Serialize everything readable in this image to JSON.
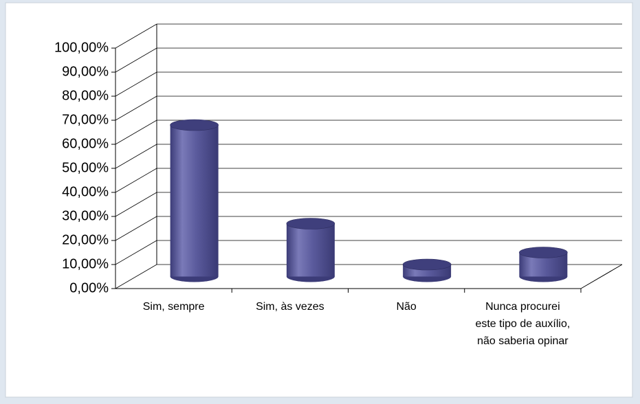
{
  "chart_data": {
    "type": "bar3d",
    "categories": [
      "Sim, sempre",
      "Sim, às vezes",
      "Não",
      "Nunca procurei este tipo de auxílio, não saberia opinar"
    ],
    "values": [
      63,
      22,
      5,
      10
    ],
    "color": "#5a5a9c",
    "ylim": [
      0,
      100
    ],
    "yticks": [
      {
        "value": 0,
        "label": "0,00%"
      },
      {
        "value": 10,
        "label": "10,00%"
      },
      {
        "value": 20,
        "label": "20,00%"
      },
      {
        "value": 30,
        "label": "30,00%"
      },
      {
        "value": 40,
        "label": "40,00%"
      },
      {
        "value": 50,
        "label": "50,00%"
      },
      {
        "value": 60,
        "label": "60,00%"
      },
      {
        "value": 70,
        "label": "70,00%"
      },
      {
        "value": 80,
        "label": "80,00%"
      },
      {
        "value": 90,
        "label": "90,00%"
      },
      {
        "value": 100,
        "label": "100,00%"
      }
    ],
    "grid": true
  }
}
